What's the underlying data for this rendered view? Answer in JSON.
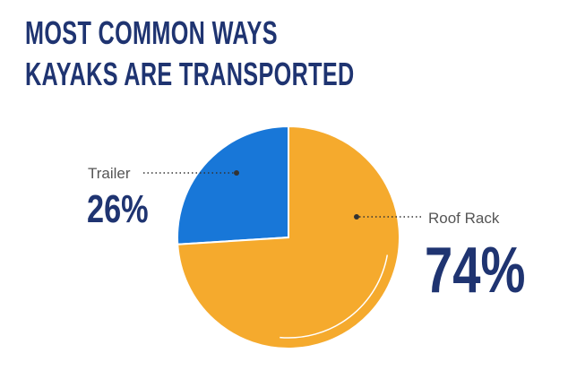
{
  "chart_data": {
    "type": "pie",
    "title": "MOST COMMON WAYS KAYAKS ARE TRANSPORTED",
    "categories": [
      "Trailer",
      "Roof Rack"
    ],
    "values": [
      26,
      74
    ],
    "value_labels": [
      "26%",
      "74%"
    ],
    "colors": [
      "#1877d8",
      "#f5aa2d"
    ]
  }
}
